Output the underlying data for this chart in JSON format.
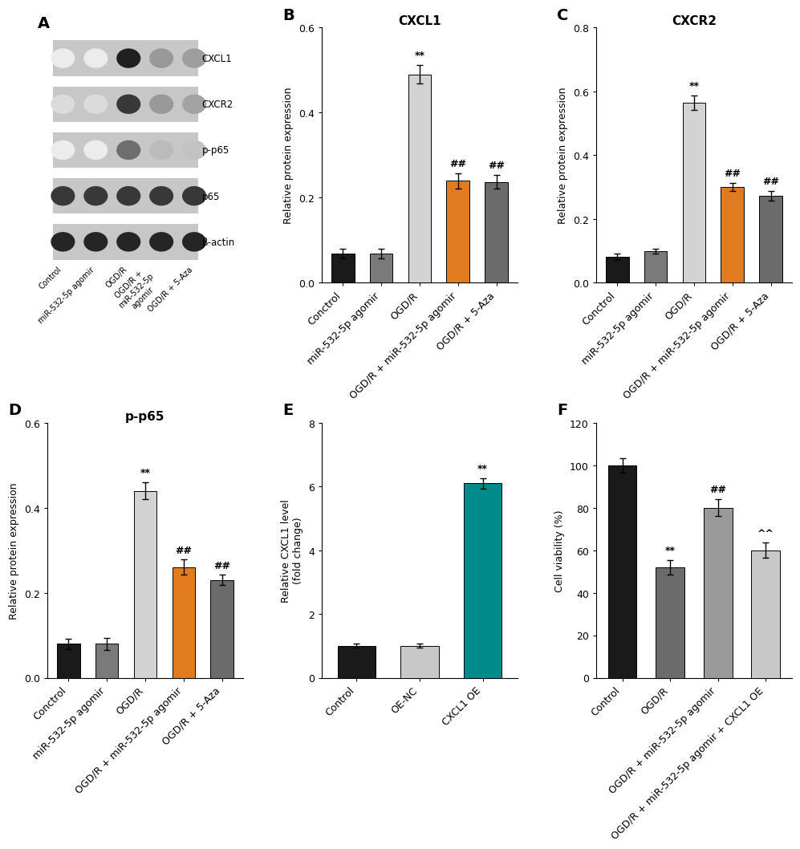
{
  "panel_A": {
    "label": "A",
    "bands": [
      "CXCL1",
      "CXCR2",
      "p-p65",
      "p65",
      "β-actin"
    ],
    "x_labels": [
      "Control",
      "miR-532-5p agomir",
      "OGD/R",
      "OGD/R +\nmiR-532-5p\nagomir",
      "OGD/R + 5-Aza"
    ],
    "bg_gray": 0.78,
    "lane_intensities": [
      [
        0.08,
        0.08,
        0.92,
        0.42,
        0.4
      ],
      [
        0.15,
        0.15,
        0.82,
        0.42,
        0.38
      ],
      [
        0.08,
        0.08,
        0.6,
        0.28,
        0.25
      ],
      [
        0.82,
        0.82,
        0.82,
        0.82,
        0.82
      ],
      [
        0.9,
        0.9,
        0.9,
        0.9,
        0.9
      ]
    ]
  },
  "panel_B": {
    "label": "B",
    "title": "CXCL1",
    "ylabel": "Relative protein expression",
    "ylim": [
      0,
      0.6
    ],
    "yticks": [
      0.0,
      0.2,
      0.4,
      0.6
    ],
    "categories": [
      "Conctrol",
      "miR-532-5p agomir",
      "OGD/R",
      "OGD/R + miR-532-5p agomir",
      "OGD/R + 5-Aza"
    ],
    "values": [
      0.068,
      0.068,
      0.49,
      0.24,
      0.237
    ],
    "errors": [
      0.012,
      0.012,
      0.022,
      0.018,
      0.016
    ],
    "colors": [
      "#1a1a1a",
      "#7a7a7a",
      "#d3d3d3",
      "#e07b20",
      "#6b6b6b"
    ],
    "sig_labels": [
      "",
      "",
      "**",
      "##",
      "##"
    ]
  },
  "panel_C": {
    "label": "C",
    "title": "CXCR2",
    "ylabel": "Relative protein expression",
    "ylim": [
      0,
      0.8
    ],
    "yticks": [
      0.0,
      0.2,
      0.4,
      0.6,
      0.8
    ],
    "categories": [
      "Conctrol",
      "miR-532-5p agomir",
      "OGD/R",
      "OGD/R + miR-532-5p agomir",
      "OGD/R + 5-Aza"
    ],
    "values": [
      0.08,
      0.098,
      0.565,
      0.3,
      0.272
    ],
    "errors": [
      0.01,
      0.008,
      0.022,
      0.012,
      0.016
    ],
    "colors": [
      "#1a1a1a",
      "#7a7a7a",
      "#d3d3d3",
      "#e07b20",
      "#6b6b6b"
    ],
    "sig_labels": [
      "",
      "",
      "**",
      "##",
      "##"
    ]
  },
  "panel_D": {
    "label": "D",
    "title": "p-p65",
    "ylabel": "Relative protein expression",
    "ylim": [
      0,
      0.6
    ],
    "yticks": [
      0.0,
      0.2,
      0.4,
      0.6
    ],
    "categories": [
      "Conctrol",
      "miR-532-5p agomir",
      "OGD/R",
      "OGD/R + miR-532-5p agomir",
      "OGD/R + 5-Aza"
    ],
    "values": [
      0.08,
      0.08,
      0.44,
      0.26,
      0.23
    ],
    "errors": [
      0.012,
      0.014,
      0.02,
      0.018,
      0.012
    ],
    "colors": [
      "#1a1a1a",
      "#7a7a7a",
      "#d3d3d3",
      "#e07b20",
      "#6b6b6b"
    ],
    "sig_labels": [
      "",
      "",
      "**",
      "##",
      "##"
    ]
  },
  "panel_E": {
    "label": "E",
    "ylabel": "Relative CXCL1 level\n(fold change)",
    "ylim": [
      0,
      8
    ],
    "yticks": [
      0,
      2,
      4,
      6,
      8
    ],
    "categories": [
      "Control",
      "OE-NC",
      "CXCL1 OE"
    ],
    "values": [
      1.0,
      1.0,
      6.1
    ],
    "errors": [
      0.06,
      0.06,
      0.16
    ],
    "colors": [
      "#1a1a1a",
      "#c8c8c8",
      "#008b8b"
    ],
    "sig_labels": [
      "",
      "",
      "**"
    ]
  },
  "panel_F": {
    "label": "F",
    "ylabel": "Cell viability (%)",
    "ylim": [
      0,
      120
    ],
    "yticks": [
      0,
      20,
      40,
      60,
      80,
      100,
      120
    ],
    "categories": [
      "Control",
      "OGD/R",
      "OGD/R + miR-532-5p agomir",
      "OGD/R + miR-532-5p agomir + CXCL1 OE"
    ],
    "values": [
      100.0,
      52.0,
      80.0,
      60.0
    ],
    "errors": [
      3.5,
      3.5,
      4.0,
      3.5
    ],
    "colors": [
      "#1a1a1a",
      "#6b6b6b",
      "#9a9a9a",
      "#c8c8c8"
    ],
    "sig_labels": [
      "",
      "**",
      "##",
      "^^"
    ]
  },
  "bg_color": "#ffffff",
  "label_fontsize": 14,
  "tick_fontsize": 9,
  "title_fontsize": 11,
  "ylabel_fontsize": 9,
  "bar_width": 0.6
}
